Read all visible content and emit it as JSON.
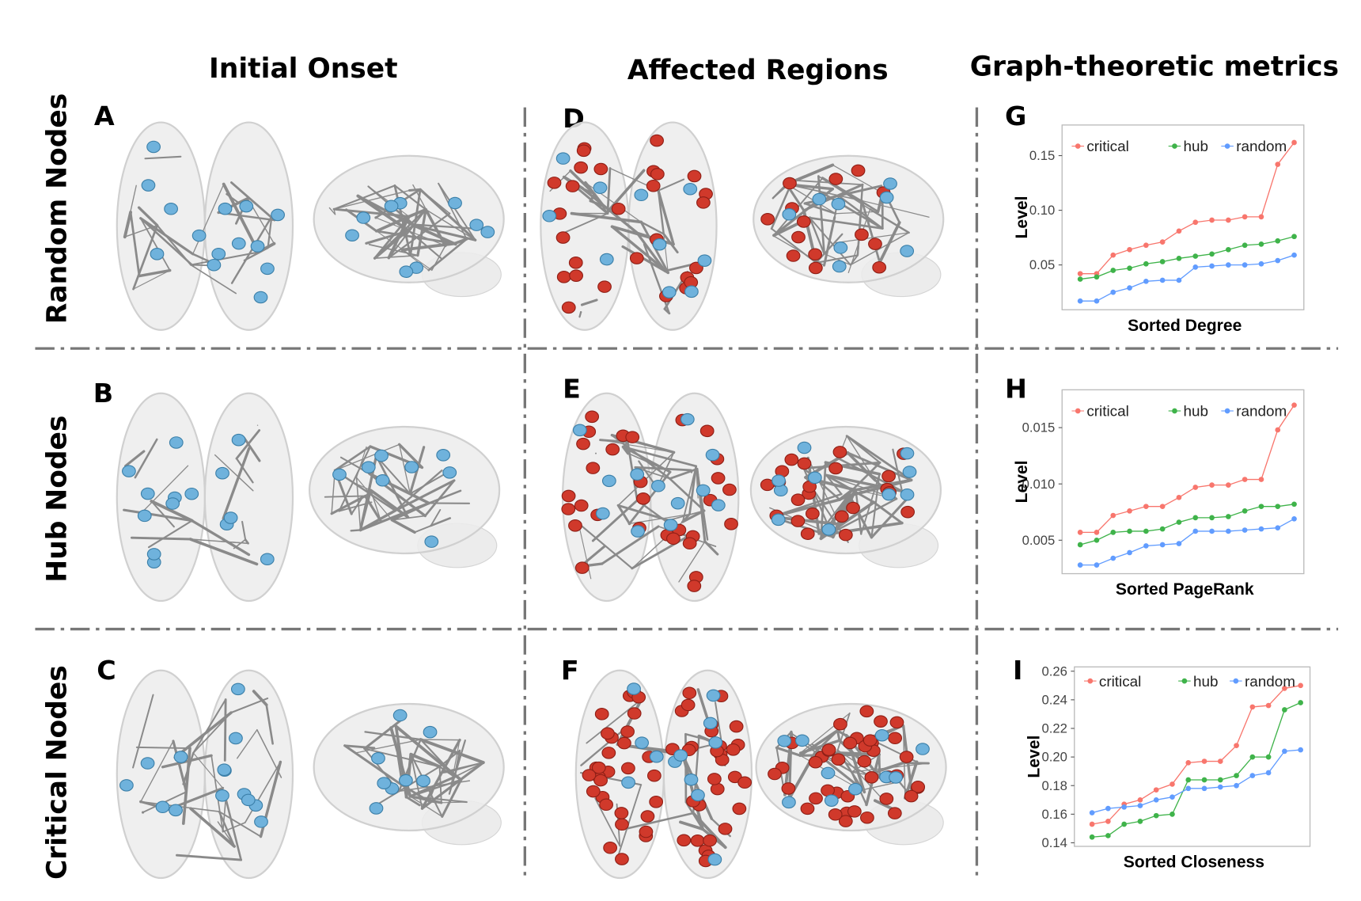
{
  "headers": [
    "Initial Onset",
    "Affected Regions",
    "Graph-theoretic metrics"
  ],
  "row_labels": [
    "Random Nodes",
    "Hub Nodes",
    "Critical Nodes"
  ],
  "panels": [
    "A",
    "B",
    "C",
    "D",
    "E",
    "F",
    "G",
    "H",
    "I"
  ],
  "chart_data": [
    {
      "type": "line",
      "x_label": "Sorted Degree",
      "y_label": "Level",
      "categories": [
        null,
        null,
        null,
        null,
        null,
        null,
        null,
        null,
        null,
        null,
        null,
        null,
        null,
        null
      ],
      "ylim": [
        0.009,
        0.178
      ],
      "yticks": [
        0.05,
        {
          "value": 0.1,
          "label": "0.10"
        },
        0.15
      ],
      "grid": false,
      "legend": "top",
      "series": [
        {
          "name": "critical",
          "color": "#f8766d",
          "values": [
            0.042,
            0.042,
            0.059,
            0.064,
            0.068,
            0.071,
            0.081,
            0.089,
            0.091,
            0.091,
            0.094,
            0.094,
            0.142,
            0.162
          ]
        },
        {
          "name": "hub",
          "color": "#3fb34a",
          "values": [
            0.037,
            0.039,
            0.045,
            0.047,
            0.051,
            0.053,
            0.056,
            0.058,
            0.06,
            0.064,
            0.068,
            0.069,
            0.072,
            0.076
          ]
        },
        {
          "name": "random",
          "color": "#619cff",
          "values": [
            0.017,
            0.017,
            0.025,
            0.029,
            0.035,
            0.036,
            0.036,
            0.048,
            0.049,
            0.05,
            0.05,
            0.051,
            0.054,
            0.059
          ]
        }
      ]
    },
    {
      "type": "line",
      "x_label": "Sorted PageRank",
      "y_label": "Level",
      "categories": [
        null,
        null,
        null,
        null,
        null,
        null,
        null,
        null,
        null,
        null,
        null,
        null,
        null,
        null
      ],
      "ylim": [
        0.00203,
        0.01836
      ],
      "yticks": [
        0.005,
        {
          "value": 0.01,
          "label": "0.010"
        },
        0.015
      ],
      "grid": false,
      "legend": "top",
      "series": [
        {
          "name": "critical",
          "color": "#f8766d",
          "values": [
            0.0057,
            0.0057,
            0.0072,
            0.0076,
            0.008,
            0.008,
            0.0088,
            0.0097,
            0.0099,
            0.0099,
            0.0104,
            0.0104,
            0.0148,
            0.017
          ]
        },
        {
          "name": "hub",
          "color": "#3fb34a",
          "values": [
            0.0046,
            0.005,
            0.0057,
            0.0058,
            0.0058,
            0.006,
            0.0066,
            0.007,
            0.007,
            0.0071,
            0.0076,
            0.008,
            0.008,
            0.0082
          ]
        },
        {
          "name": "random",
          "color": "#619cff",
          "values": [
            0.0028,
            0.0028,
            0.0034,
            0.0039,
            0.0045,
            0.0046,
            0.0047,
            0.0058,
            0.0058,
            0.0058,
            0.0059,
            0.006,
            0.0061,
            0.0069
          ]
        }
      ]
    },
    {
      "type": "line",
      "x_label": "Sorted Closeness",
      "y_label": "Level",
      "categories": [
        null,
        null,
        null,
        null,
        null,
        null,
        null,
        null,
        null,
        null,
        null,
        null,
        null,
        null
      ],
      "ylim": [
        0.1375,
        0.263
      ],
      "yticks": [
        0.14,
        0.16,
        0.18,
        {
          "value": 0.2,
          "label": "0.20"
        },
        0.22,
        0.24,
        0.26
      ],
      "grid": false,
      "legend": "top",
      "series": [
        {
          "name": "critical",
          "color": "#f8766d",
          "values": [
            0.153,
            0.155,
            0.167,
            0.17,
            0.177,
            0.181,
            0.196,
            0.197,
            0.197,
            0.208,
            0.235,
            0.236,
            0.248,
            0.25
          ]
        },
        {
          "name": "hub",
          "color": "#3fb34a",
          "values": [
            0.144,
            0.145,
            0.153,
            0.155,
            0.159,
            0.16,
            0.184,
            0.184,
            0.184,
            0.187,
            0.2,
            0.2,
            0.233,
            0.238
          ]
        },
        {
          "name": "random",
          "color": "#619cff",
          "values": [
            0.161,
            0.164,
            0.165,
            0.166,
            0.17,
            0.172,
            0.178,
            0.178,
            0.179,
            0.18,
            0.187,
            0.189,
            0.204,
            0.205
          ]
        }
      ]
    }
  ]
}
